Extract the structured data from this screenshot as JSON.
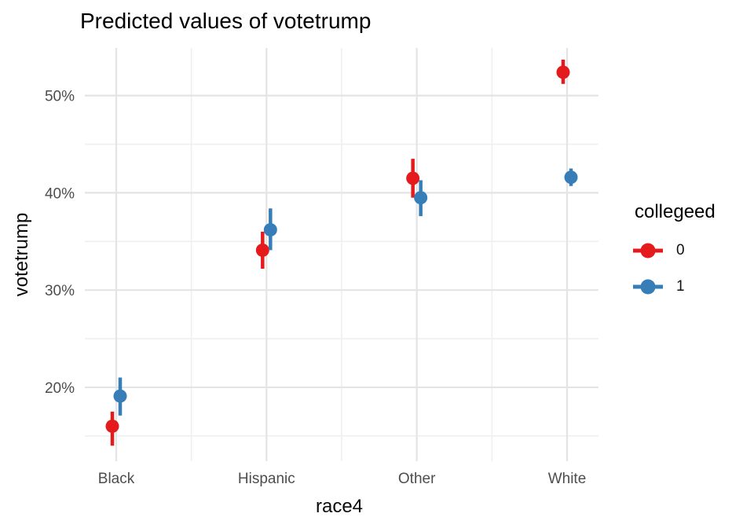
{
  "title": "Predicted values of votetrump",
  "colors": {
    "series_0_red": "#E41A1C",
    "series_1_blue": "#377EB8",
    "grid_major": "#E4E4E4",
    "grid_minor": "#EFEFEF",
    "tick_label": "#4D4D4D",
    "text": "#000000",
    "background": "#FFFFFF"
  },
  "chart_data": {
    "type": "scatter",
    "style": "pointrange_dodged",
    "title": "Predicted values of votetrump",
    "xlabel": "race4",
    "ylabel": "votetrump",
    "categories": [
      "Black",
      "Hispanic",
      "Other",
      "White"
    ],
    "series": [
      {
        "name": "0",
        "color": "#E41A1C",
        "values": [
          16.0,
          34.1,
          41.5,
          52.4
        ],
        "ci_low": [
          14.0,
          32.2,
          39.5,
          51.2
        ],
        "ci_high": [
          17.5,
          36.0,
          43.5,
          53.7
        ]
      },
      {
        "name": "1",
        "color": "#377EB8",
        "values": [
          19.1,
          36.2,
          39.5,
          41.6
        ],
        "ci_low": [
          17.1,
          34.1,
          37.6,
          40.7
        ],
        "ci_high": [
          21.0,
          38.4,
          41.3,
          42.5
        ]
      }
    ],
    "y_tick_values": [
      20,
      30,
      40,
      50
    ],
    "y_tick_labels": [
      "20%",
      "30%",
      "40%",
      "50%"
    ],
    "y_minor_values": [
      15,
      25,
      35,
      45
    ],
    "ylim": [
      12.4,
      54.9
    ],
    "grid": "major+minor, light gray on white (theme_minimal)",
    "legend_position": "right",
    "legend": {
      "title": "collegeed",
      "entries": [
        {
          "label": "0",
          "color": "#E41A1C"
        },
        {
          "label": "1",
          "color": "#377EB8"
        }
      ]
    }
  }
}
